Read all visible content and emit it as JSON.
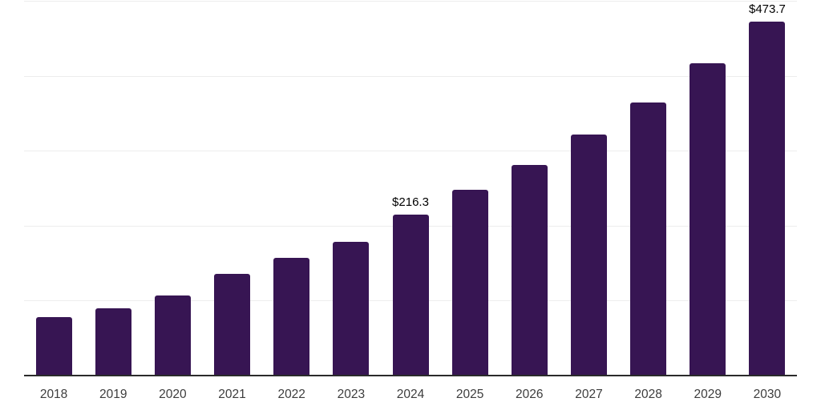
{
  "chart_data": {
    "type": "bar",
    "title": "",
    "xlabel": "",
    "ylabel": "",
    "categories": [
      "2018",
      "2019",
      "2020",
      "2021",
      "2022",
      "2023",
      "2024",
      "2025",
      "2026",
      "2027",
      "2028",
      "2029",
      "2030"
    ],
    "values": [
      79.0,
      91.2,
      107.5,
      137.0,
      158.3,
      180.0,
      216.3,
      248.5,
      282.0,
      322.3,
      365.7,
      417.5,
      473.7
    ],
    "data_labels": {
      "2024": "$216.3",
      "2030": "$473.7"
    },
    "ylim": [
      0,
      500
    ],
    "grid_step": 100,
    "grid": true,
    "legend": false,
    "y_axis_labels_shown": false,
    "colors": {
      "bar": "#371553",
      "axis_line": "#2b2b2b",
      "gridline": "#ededed",
      "tick_label": "#3d3d3d",
      "value_label": "#000000",
      "background": "#ffffff"
    }
  }
}
